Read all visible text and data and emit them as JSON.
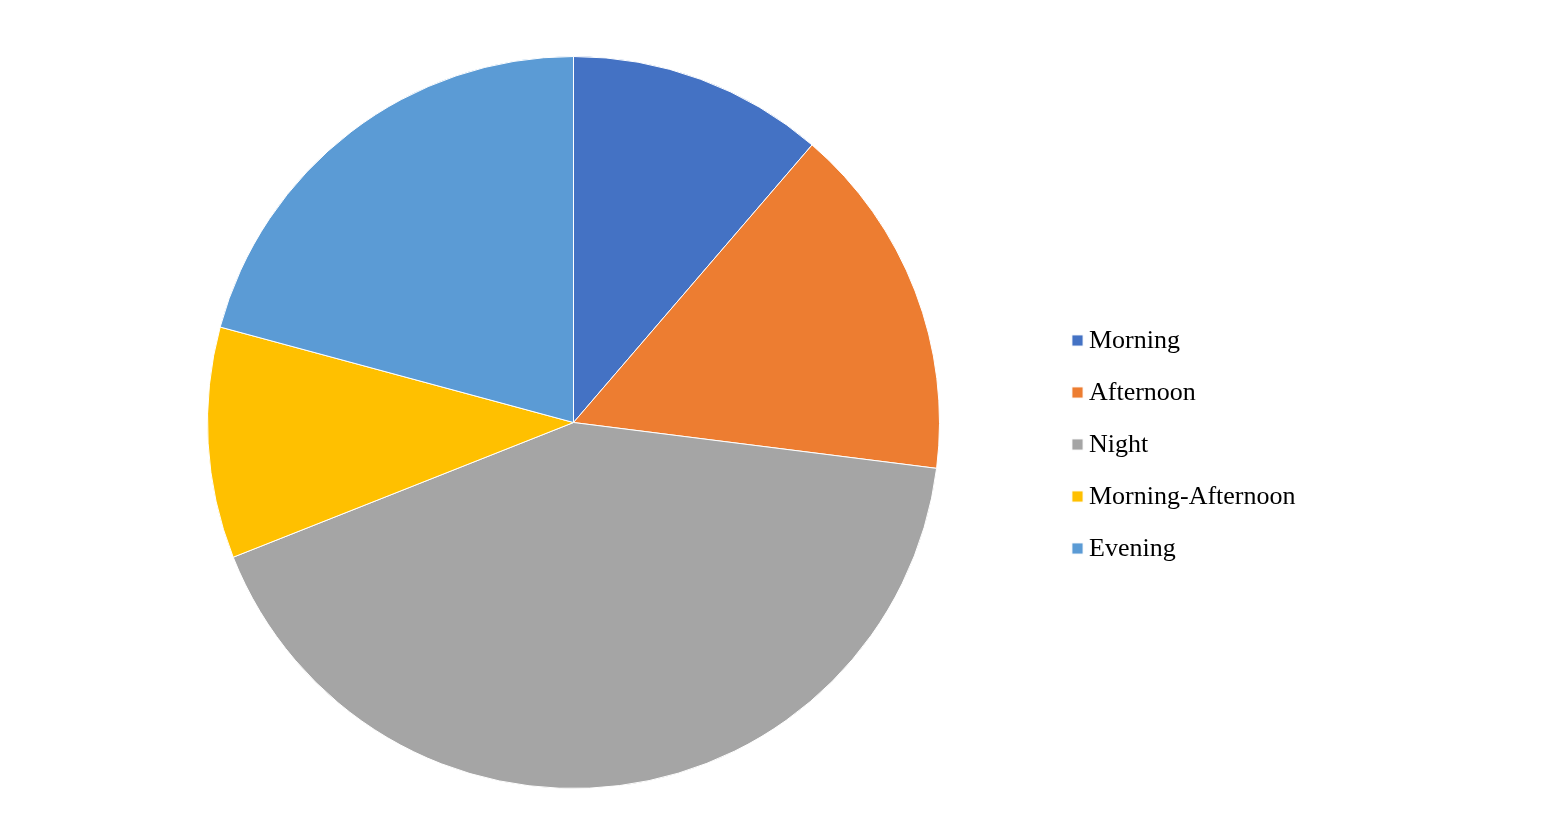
{
  "chart_data": {
    "type": "pie",
    "categories": [
      "Morning",
      "Afternoon",
      "Night",
      "Morning-Afternoon",
      "Evening"
    ],
    "values": [
      11.3,
      15.7,
      42.0,
      10.2,
      20.8
    ],
    "colors": [
      "#4472c4",
      "#ed7d31",
      "#a5a5a5",
      "#ffc000",
      "#5b9bd5"
    ],
    "legend": "right"
  }
}
